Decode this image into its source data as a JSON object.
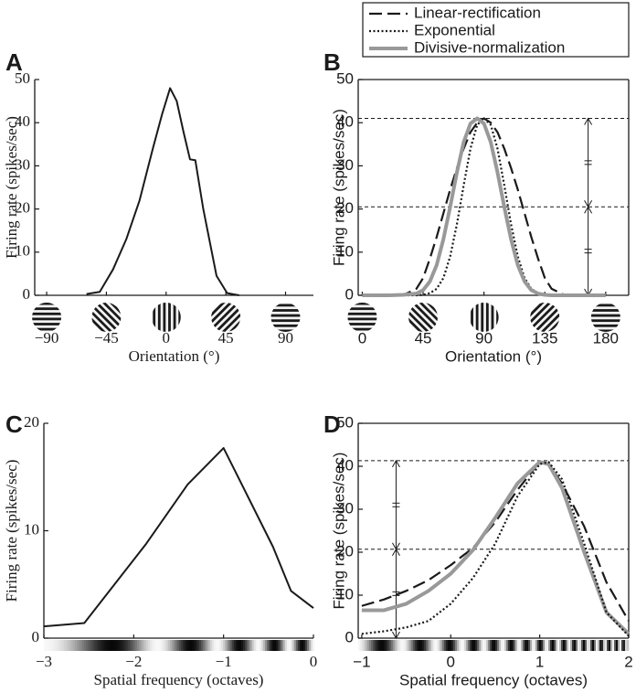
{
  "chart_data": [
    {
      "type": "line",
      "panel_label": "A",
      "xlabel": "Orientation (°)",
      "ylabel": "Firing rate (spikes/sec)",
      "xlim": [
        -99,
        111
      ],
      "ylim": [
        0,
        50
      ],
      "xticks": [
        {
          "value": -90,
          "label": "−90"
        },
        {
          "value": -45,
          "label": "−45"
        },
        0,
        45,
        90
      ],
      "yticks": [
        0,
        10,
        20,
        30,
        40,
        50
      ],
      "x": [
        -60,
        -50,
        -40,
        -30,
        -20,
        -10,
        -3,
        3,
        8,
        13,
        18,
        22,
        28,
        38,
        46,
        55
      ],
      "values": [
        0.3,
        0.8,
        6,
        13,
        22,
        34,
        42,
        48,
        45,
        38,
        31.5,
        31.3,
        20,
        4.5,
        0.5,
        0
      ],
      "color": "#1a1a1a",
      "style": "solid"
    },
    {
      "type": "line",
      "panel_label": "B",
      "xlabel": "Orientation (°)",
      "ylabel": "Firing rate (spikes/sec)",
      "xlim": [
        -3,
        197
      ],
      "ylim": [
        0,
        50
      ],
      "xticks": [
        0,
        45,
        90,
        135,
        180
      ],
      "yticks": [
        0,
        10,
        20,
        30,
        40,
        50
      ],
      "reference_lines": [
        41,
        20.5
      ],
      "legend": "top-right",
      "x": [
        0,
        10,
        20,
        30,
        40,
        45,
        50,
        55,
        60,
        65,
        70,
        75,
        80,
        85,
        90,
        95,
        100,
        105,
        110,
        115,
        120,
        125,
        130,
        135,
        140,
        150,
        160,
        170,
        180
      ],
      "series": [
        {
          "name": "Linear-rectification",
          "color": "#1a1a1a",
          "style": "dashed",
          "values": [
            0,
            0,
            0,
            0,
            1.5,
            4,
            8.5,
            13.5,
            19,
            24.5,
            29.5,
            34,
            37.8,
            40,
            41,
            40,
            37.8,
            34,
            29.5,
            24.5,
            19,
            13.5,
            8.5,
            4,
            1.5,
            0,
            0,
            0,
            0
          ]
        },
        {
          "name": "Exponential",
          "color": "#1a1a1a",
          "style": "dotted",
          "values": [
            0,
            0,
            0,
            0,
            0,
            0.1,
            0.5,
            1.5,
            4,
            9,
            16.5,
            25.5,
            34,
            39.5,
            41,
            39.5,
            34,
            25.5,
            16.5,
            9,
            4,
            1.5,
            0.5,
            0.1,
            0,
            0,
            0,
            0,
            0
          ]
        },
        {
          "name": "Divisive-normalization",
          "color": "#999999",
          "style": "solid",
          "values": [
            0,
            0,
            0,
            0.1,
            0.4,
            1.2,
            3.2,
            7,
            13,
            20.5,
            28.5,
            35.5,
            39.8,
            41,
            39.8,
            35.5,
            28.5,
            20.5,
            13,
            7,
            3.2,
            1.2,
            0.4,
            0.1,
            0,
            0,
            0,
            0,
            0
          ]
        }
      ]
    },
    {
      "type": "line",
      "panel_label": "C",
      "xlabel": "Spatial frequency (octaves)",
      "ylabel": "Firing rate (spikes/sec)",
      "xlim": [
        -3,
        0
      ],
      "ylim": [
        0,
        20
      ],
      "xticks": [
        {
          "value": -3,
          "label": "−3"
        },
        {
          "value": -2,
          "label": "−2"
        },
        {
          "value": -1,
          "label": "−1"
        },
        0
      ],
      "yticks": [
        0,
        10,
        20
      ],
      "x": [
        -3,
        -2.55,
        -1.86,
        -1.4,
        -1,
        -0.45,
        -0.25,
        0
      ],
      "values": [
        1.1,
        1.4,
        8.8,
        14.3,
        17.7,
        8.5,
        4.4,
        2.8
      ],
      "color": "#1a1a1a",
      "style": "solid"
    },
    {
      "type": "line",
      "panel_label": "D",
      "xlabel": "Spatial frequency (octaves)",
      "ylabel": "Firing rate (spikes/sec)",
      "xlim": [
        -1.04,
        2
      ],
      "ylim": [
        0,
        50
      ],
      "xticks": [
        {
          "value": -1,
          "label": "−1"
        },
        0,
        1,
        2
      ],
      "yticks": [
        0,
        10,
        20,
        30,
        40,
        50
      ],
      "reference_lines": [
        41.3,
        20.7
      ],
      "x": [
        -1,
        -0.75,
        -0.5,
        -0.25,
        0,
        0.25,
        0.5,
        0.75,
        1,
        1.1,
        1.25,
        1.5,
        1.75,
        2
      ],
      "series": [
        {
          "color": "#1a1a1a",
          "style": "dashed",
          "values": [
            7.5,
            9,
            11,
            13.5,
            17,
            21,
            27,
            34.5,
            41,
            40.5,
            36,
            26,
            13,
            4
          ]
        },
        {
          "color": "#999999",
          "style": "solid",
          "values": [
            6.5,
            6.5,
            8,
            11,
            15,
            20.5,
            28,
            36,
            41,
            40.5,
            35,
            20,
            6,
            1
          ]
        },
        {
          "color": "#1a1a1a",
          "style": "dotted",
          "values": [
            1,
            1.6,
            2.5,
            4,
            8,
            14,
            22,
            33,
            40.5,
            41,
            37,
            22,
            6,
            0.5
          ]
        }
      ]
    }
  ]
}
